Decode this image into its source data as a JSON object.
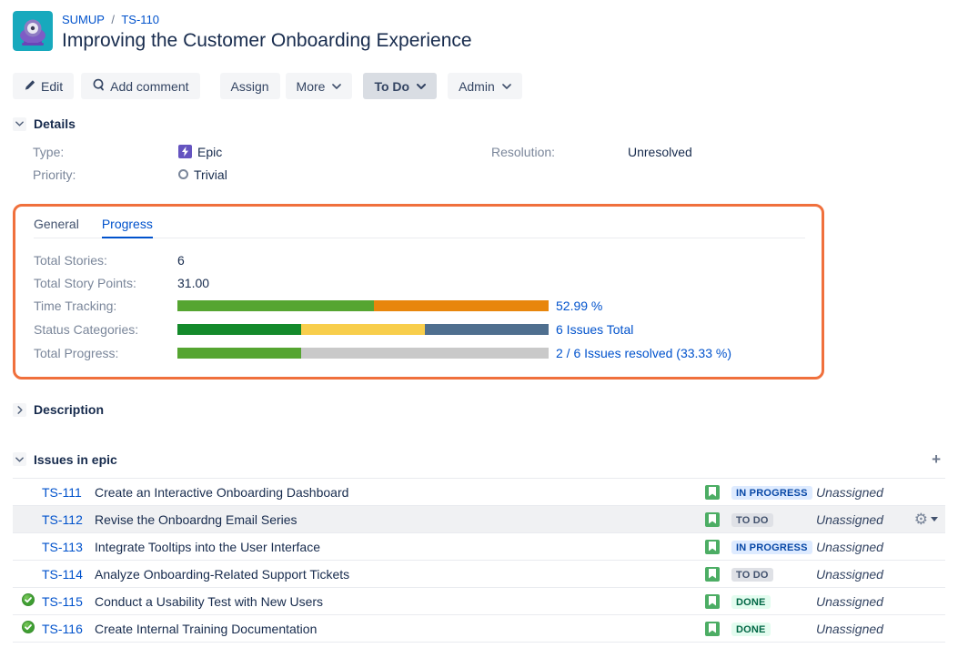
{
  "header": {
    "project": "SUMUP",
    "separator": "/",
    "issue_key": "TS-110",
    "title": "Improving the Customer Onboarding Experience"
  },
  "toolbar": {
    "edit": "Edit",
    "add_comment": "Add comment",
    "assign": "Assign",
    "more": "More",
    "status": "To Do",
    "admin": "Admin"
  },
  "details": {
    "section_title": "Details",
    "type_label": "Type:",
    "type_value": "Epic",
    "priority_label": "Priority:",
    "priority_value": "Trivial",
    "resolution_label": "Resolution:",
    "resolution_value": "Unresolved"
  },
  "progress": {
    "tabs": {
      "general": "General",
      "progress": "Progress"
    },
    "rows": [
      {
        "label": "Total Stories:",
        "value": "6"
      },
      {
        "label": "Total Story Points:",
        "value": "31.00"
      },
      {
        "label": "Time Tracking:",
        "link": "52.99 %",
        "bar": {
          "segments": [
            {
              "pct": 52.99,
              "color": "#55A531",
              "name": "completed"
            },
            {
              "pct": 47.01,
              "color": "#E8860C",
              "name": "remaining"
            }
          ]
        }
      },
      {
        "label": "Status Categories:",
        "link": "6 Issues Total",
        "bar": {
          "segments": [
            {
              "pct": 33.33,
              "color": "#148A2B",
              "name": "done"
            },
            {
              "pct": 33.33,
              "color": "#F8CE4C",
              "name": "in-progress"
            },
            {
              "pct": 33.34,
              "color": "#4F6F8F",
              "name": "to-do"
            }
          ]
        }
      },
      {
        "label": "Total Progress:",
        "link": "2 / 6 Issues resolved (33.33 %)",
        "bar": {
          "segments": [
            {
              "pct": 33.33,
              "color": "#55A531",
              "name": "resolved"
            },
            {
              "pct": 66.67,
              "color": "#C9C9C9",
              "name": "unresolved"
            }
          ]
        }
      }
    ]
  },
  "description": {
    "section_title": "Description"
  },
  "issues": {
    "section_title": "Issues in epic",
    "add_label": "+",
    "rows": [
      {
        "key": "TS-111",
        "summary": "Create an Interactive Onboarding Dashboard",
        "status": "IN PROGRESS",
        "assignee": "Unassigned",
        "resolved": false
      },
      {
        "key": "TS-112",
        "summary": "Revise the Onboardng Email Series",
        "status": "TO DO",
        "assignee": "Unassigned",
        "resolved": false
      },
      {
        "key": "TS-113",
        "summary": "Integrate Tooltips into the User Interface",
        "status": "IN PROGRESS",
        "assignee": "Unassigned",
        "resolved": false
      },
      {
        "key": "TS-114",
        "summary": "Analyze Onboarding-Related Support Tickets",
        "status": "TO DO",
        "assignee": "Unassigned",
        "resolved": false
      },
      {
        "key": "TS-115",
        "summary": "Conduct a Usability Test with New Users",
        "status": "DONE",
        "assignee": "Unassigned",
        "resolved": true
      },
      {
        "key": "TS-116",
        "summary": "Create Internal Training Documentation",
        "status": "DONE",
        "assignee": "Unassigned",
        "resolved": true
      }
    ]
  },
  "colors": {
    "link_blue": "#0052CC",
    "text_dark": "#172B4D",
    "label_gray": "#7A869A",
    "highlight_annotation_orange": "#F0703C",
    "badge_inprogress_bg": "#DEEBFF",
    "badge_inprogress_text": "#0747A6",
    "badge_todo_bg": "#DFE1E6",
    "badge_todo_text": "#42526E",
    "badge_done_bg": "#E3FCEF",
    "badge_done_text": "#006644",
    "epic_purple": "#6554C0",
    "story_green": "#4CAD64",
    "avatar_teal": "#17A9BD"
  }
}
